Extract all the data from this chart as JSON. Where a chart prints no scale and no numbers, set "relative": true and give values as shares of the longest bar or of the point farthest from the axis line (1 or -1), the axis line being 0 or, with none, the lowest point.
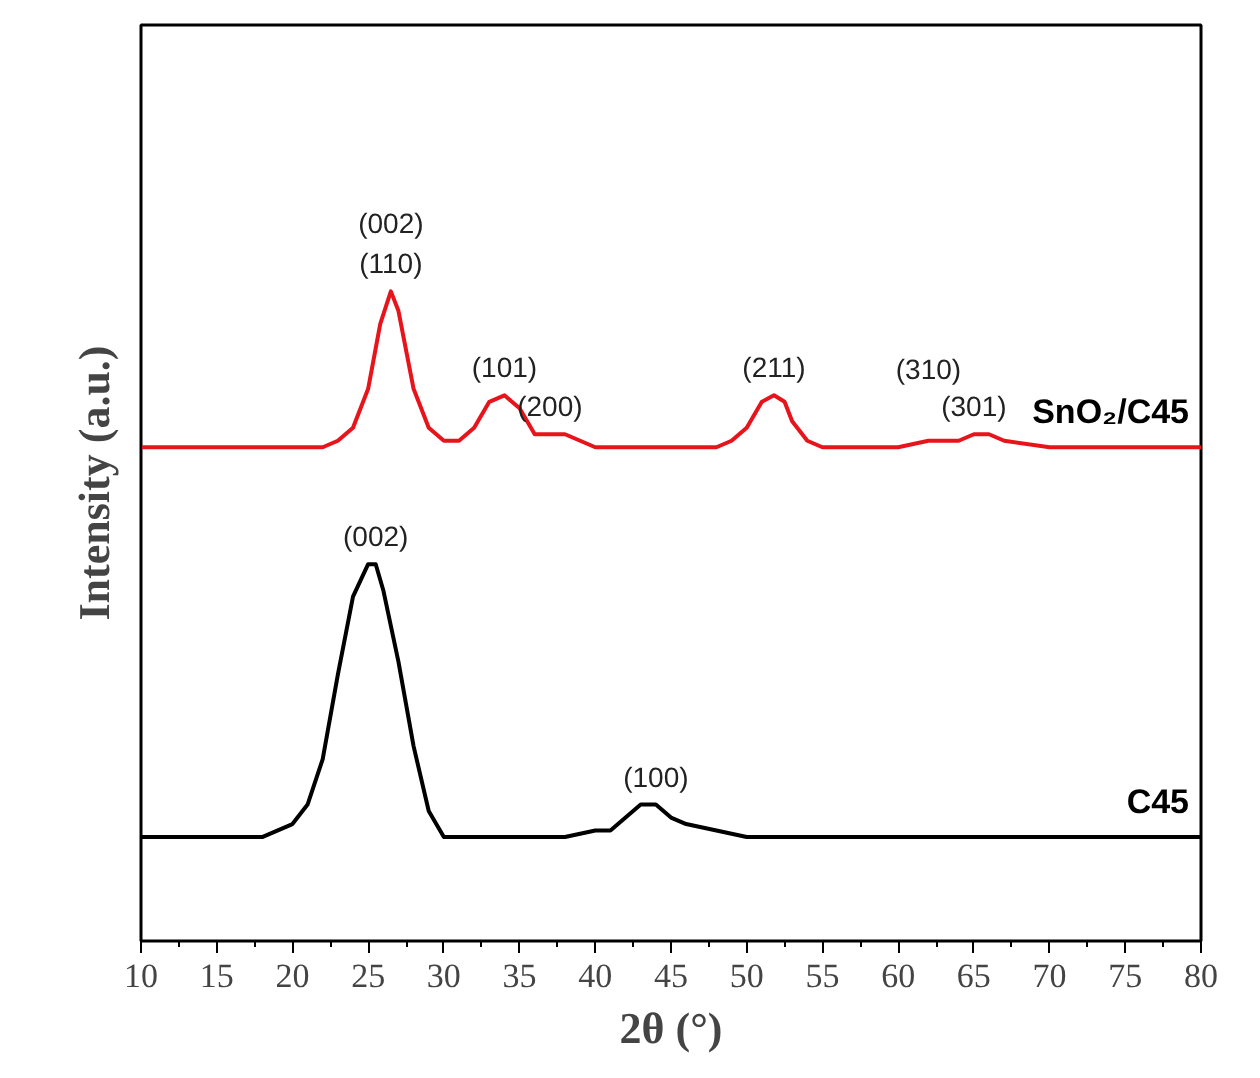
{
  "chart_data": {
    "type": "line",
    "relative": true,
    "xlabel": "2θ (°)",
    "ylabel": "Intensity (a.u.)",
    "xlim": [
      10,
      80
    ],
    "xticks": [
      10,
      15,
      20,
      25,
      30,
      35,
      40,
      45,
      50,
      55,
      60,
      65,
      70,
      75,
      80
    ],
    "grid": false,
    "legend": false,
    "marker": "none",
    "line_style": "solid",
    "series": [
      {
        "name": "SnO₂/C45",
        "color": "#e8141b",
        "x": [
          10,
          12,
          15,
          18,
          20,
          22,
          23,
          24,
          25,
          25.8,
          26.5,
          27,
          28,
          29,
          30,
          31,
          32,
          33,
          34,
          35,
          36,
          37,
          38,
          39,
          40,
          42,
          44,
          46,
          48,
          49,
          50,
          51,
          51.8,
          52.5,
          53,
          54,
          55,
          58,
          60,
          62,
          64,
          65,
          66,
          67,
          70,
          75,
          80
        ],
        "values": [
          0.76,
          0.76,
          0.76,
          0.76,
          0.76,
          0.76,
          0.77,
          0.79,
          0.85,
          0.95,
          1.0,
          0.97,
          0.85,
          0.79,
          0.77,
          0.77,
          0.79,
          0.83,
          0.84,
          0.82,
          0.78,
          0.78,
          0.78,
          0.77,
          0.76,
          0.76,
          0.76,
          0.76,
          0.76,
          0.77,
          0.79,
          0.83,
          0.84,
          0.83,
          0.8,
          0.77,
          0.76,
          0.76,
          0.76,
          0.77,
          0.77,
          0.78,
          0.78,
          0.77,
          0.76,
          0.76,
          0.76
        ]
      },
      {
        "name": "C45",
        "color": "#000000",
        "x": [
          10,
          12,
          14,
          16,
          18,
          19,
          20,
          21,
          22,
          23,
          24,
          25,
          25.5,
          26,
          27,
          28,
          29,
          30,
          32,
          34,
          36,
          38,
          40,
          41,
          42,
          43,
          44,
          45,
          46,
          48,
          50,
          55,
          60,
          65,
          70,
          75,
          80
        ],
        "values": [
          0.16,
          0.16,
          0.16,
          0.16,
          0.16,
          0.17,
          0.18,
          0.21,
          0.28,
          0.41,
          0.53,
          0.58,
          0.58,
          0.54,
          0.43,
          0.3,
          0.2,
          0.16,
          0.16,
          0.16,
          0.16,
          0.16,
          0.17,
          0.17,
          0.19,
          0.21,
          0.21,
          0.19,
          0.18,
          0.17,
          0.16,
          0.16,
          0.16,
          0.16,
          0.16,
          0.16,
          0.16
        ]
      }
    ],
    "annotations": [
      {
        "text": "(002)",
        "x": 26.5,
        "y": 1.0
      },
      {
        "text": "(110)",
        "x": 26.5,
        "y": 1.0
      },
      {
        "text": "(101)",
        "x": 34,
        "y": 0.84
      },
      {
        "text": "(200)",
        "x": 37,
        "y": 0.78
      },
      {
        "text": "(211)",
        "x": 51.8,
        "y": 0.84
      },
      {
        "text": "(310)",
        "x": 62,
        "y": 0.77
      },
      {
        "text": "(301)",
        "x": 65,
        "y": 0.78
      },
      {
        "text": "(002)",
        "x": 25.5,
        "y": 0.58
      },
      {
        "text": "(100)",
        "x": 44,
        "y": 0.21
      }
    ]
  }
}
